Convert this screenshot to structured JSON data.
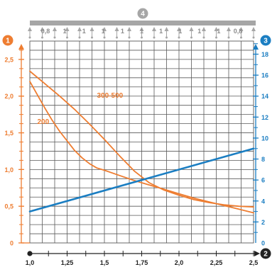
{
  "colors": {
    "orange": "#ee7d31",
    "blue": "#1b7ec2",
    "grid": "#595959",
    "dark": "#222222",
    "support": "#a6a6a6",
    "support_text": "#8c8c8c"
  },
  "badges": {
    "left_axis": "1",
    "right_axis": "3",
    "bottom_axis": "2",
    "support_bar": "4"
  },
  "support_labels": [
    "0,8",
    "1",
    "1",
    "1",
    "1",
    "1",
    "1",
    "1",
    "1",
    "1",
    "0,8"
  ],
  "chart_data": {
    "type": "line",
    "title": "",
    "xlabel": "",
    "ylabel": "",
    "xlim": [
      1.0,
      2.5
    ],
    "ylim": [
      0,
      2.75
    ],
    "y2lim": [
      0,
      19.25
    ],
    "grid": true,
    "x_ticks": [
      1.0,
      1.25,
      1.5,
      1.75,
      2.0,
      2.25,
      2.5
    ],
    "x_tick_labels": [
      "1,0",
      "1,25",
      "1,5",
      "1,75",
      "2,0",
      "2,25",
      "2,5"
    ],
    "y_ticks": [
      0,
      0.5,
      1.0,
      1.5,
      2.0,
      2.5
    ],
    "y_tick_labels": [
      "0",
      "0,5",
      "1,0",
      "1,5",
      "2,0",
      "2,5"
    ],
    "y2_ticks": [
      0,
      2,
      4,
      6,
      8,
      10,
      12,
      14,
      16,
      18
    ],
    "y2_tick_labels": [
      "0",
      "2",
      "4",
      "6",
      "8",
      "10",
      "12",
      "14",
      "16",
      "18"
    ],
    "series": [
      {
        "name": "200",
        "axis": "left",
        "color": "#ee7d31",
        "x": [
          1.0,
          1.05,
          1.1,
          1.15,
          1.2,
          1.25,
          1.3,
          1.35,
          1.4,
          1.45,
          1.5,
          1.6,
          1.7,
          1.8,
          1.9,
          2.0,
          2.1,
          2.2,
          2.3,
          2.4,
          2.5
        ],
        "y": [
          2.2,
          2.02,
          1.84,
          1.67,
          1.52,
          1.39,
          1.26,
          1.16,
          1.08,
          1.02,
          0.99,
          0.92,
          0.85,
          0.79,
          0.73,
          0.67,
          0.61,
          0.56,
          0.51,
          0.46,
          0.41
        ]
      },
      {
        "name": "300-500",
        "axis": "left",
        "color": "#ee7d31",
        "x": [
          1.0,
          1.1,
          1.2,
          1.3,
          1.4,
          1.5,
          1.6,
          1.7,
          1.8,
          1.9,
          2.0,
          2.1,
          2.2,
          2.3,
          2.4,
          2.5
        ],
        "y": [
          2.34,
          2.17,
          2.0,
          1.82,
          1.62,
          1.41,
          1.19,
          0.98,
          0.82,
          0.72,
          0.65,
          0.59,
          0.55,
          0.52,
          0.5,
          0.49
        ]
      },
      {
        "axis": "right",
        "color": "#1b7ec2",
        "x": [
          1.0,
          2.5
        ],
        "y": [
          3.0,
          9.0
        ]
      }
    ],
    "annotations": [
      {
        "text": "200",
        "x": 1.05,
        "y": 1.62
      },
      {
        "text": "300-500",
        "x": 1.45,
        "y": 1.98
      }
    ]
  }
}
